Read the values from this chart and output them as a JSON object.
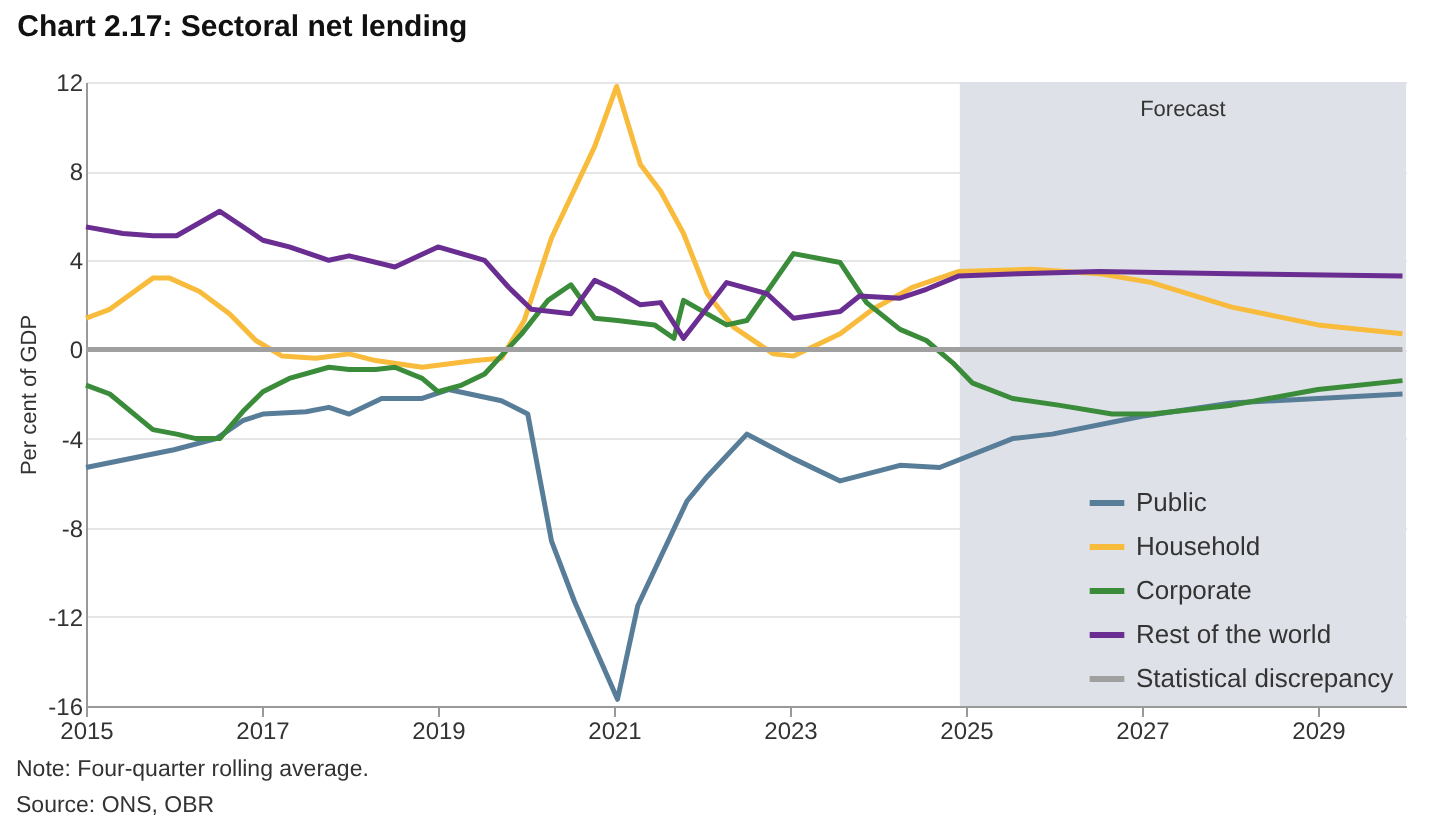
{
  "chart_data": {
    "type": "line",
    "title": "Chart 2.17: Sectoral net lending",
    "ylabel": "Per cent of GDP",
    "xlim": [
      2015,
      2030
    ],
    "xticks": [
      2015,
      2017,
      2019,
      2021,
      2023,
      2025,
      2027,
      2029
    ],
    "ylim": [
      -16,
      12
    ],
    "yticks": [
      -16,
      -12,
      -8,
      -4,
      0,
      4,
      8,
      12
    ],
    "grid": "y",
    "legend": "bottom right",
    "line_style": "solid",
    "marker": "none",
    "bands": [
      {
        "axis": "x",
        "from": 2024.93,
        "to": 2030,
        "label": "Forecast",
        "color": "#dfe1e8"
      }
    ],
    "annotations": [
      "Note: Four-quarter rolling average.",
      "Source: ONS, OBR"
    ],
    "series": [
      {
        "name": "Public",
        "color": "#587d98",
        "x": [
          2015,
          2016,
          2016.48,
          2016.78,
          2017.01,
          2017.5,
          2017.76,
          2017.99,
          2018.36,
          2018.82,
          2019.12,
          2019.72,
          2020.02,
          2020.29,
          2020.55,
          2021.04,
          2021.27,
          2021.83,
          2022.06,
          2022.51,
          2023.04,
          2023.57,
          2024.25,
          2024.7,
          2025.53,
          2025.98,
          2027,
          2028.02,
          2029,
          2029.96
        ],
        "values": [
          -5.3,
          -4.5,
          -4.0,
          -3.2,
          -2.9,
          -2.8,
          -2.6,
          -2.9,
          -2.2,
          -2.2,
          -1.8,
          -2.3,
          -2.9,
          -8.6,
          -11.3,
          -15.7,
          -11.5,
          -6.8,
          -5.7,
          -3.8,
          -4.9,
          -5.9,
          -5.2,
          -5.3,
          -4.0,
          -3.8,
          -3.0,
          -2.4,
          -2.2,
          -2.0
        ]
      },
      {
        "name": "Household",
        "color": "#f8bb3b",
        "x": [
          2015,
          2015.27,
          2015.76,
          2015.95,
          2016.29,
          2016.63,
          2016.93,
          2017.23,
          2017.61,
          2017.99,
          2018.29,
          2018.82,
          2019.42,
          2019.72,
          2019.98,
          2020.29,
          2020.78,
          2021.03,
          2021.3,
          2021.53,
          2021.79,
          2022.06,
          2022.36,
          2022.81,
          2023.04,
          2023.57,
          2023.94,
          2024.4,
          2024.92,
          2025.75,
          2026.51,
          2027.11,
          2028.02,
          2029,
          2029.96
        ],
        "values": [
          1.4,
          1.8,
          3.2,
          3.2,
          2.6,
          1.6,
          0.4,
          -0.3,
          -0.4,
          -0.2,
          -0.5,
          -0.8,
          -0.5,
          -0.4,
          1.3,
          5.0,
          9.1,
          11.8,
          8.3,
          7.1,
          5.2,
          2.5,
          1.0,
          -0.2,
          -0.3,
          0.7,
          1.8,
          2.8,
          3.5,
          3.6,
          3.4,
          3.0,
          1.9,
          1.1,
          0.7
        ]
      },
      {
        "name": "Corporate",
        "color": "#3a8c3a",
        "x": [
          2015,
          2015.27,
          2015.76,
          2016.03,
          2016.25,
          2016.52,
          2016.78,
          2017.01,
          2017.31,
          2017.76,
          2017.99,
          2018.29,
          2018.51,
          2018.82,
          2019.0,
          2019.27,
          2019.53,
          2019.95,
          2020.25,
          2020.51,
          2020.78,
          2021.04,
          2021.46,
          2021.68,
          2021.79,
          2022.28,
          2022.51,
          2023.04,
          2023.57,
          2023.87,
          2024.25,
          2024.55,
          2024.85,
          2025.07,
          2025.53,
          2026.05,
          2026.66,
          2027.11,
          2028.02,
          2029,
          2029.96
        ],
        "values": [
          -1.6,
          -2.0,
          -3.6,
          -3.8,
          -4.0,
          -4.0,
          -2.8,
          -1.9,
          -1.3,
          -0.8,
          -0.9,
          -0.9,
          -0.8,
          -1.3,
          -1.9,
          -1.6,
          -1.1,
          0.7,
          2.2,
          2.9,
          1.4,
          1.3,
          1.1,
          0.5,
          2.2,
          1.1,
          1.3,
          4.3,
          3.9,
          2.1,
          0.9,
          0.4,
          -0.6,
          -1.5,
          -2.2,
          -2.5,
          -2.9,
          -2.9,
          -2.5,
          -1.8,
          -1.4
        ]
      },
      {
        "name": "Rest of the world",
        "color": "#6a2d91",
        "x": [
          2015,
          2015.42,
          2015.76,
          2016.03,
          2016.52,
          2017.01,
          2017.31,
          2017.76,
          2017.99,
          2018.51,
          2019.0,
          2019.53,
          2019.8,
          2020.06,
          2020.51,
          2020.78,
          2021.0,
          2021.3,
          2021.53,
          2021.79,
          2022.28,
          2022.74,
          2023.04,
          2023.57,
          2023.79,
          2024.25,
          2024.55,
          2024.92,
          2025.6,
          2026.51,
          2028.02,
          2029.96
        ],
        "values": [
          5.5,
          5.2,
          5.1,
          5.1,
          6.2,
          4.9,
          4.6,
          4.0,
          4.2,
          3.7,
          4.6,
          4.0,
          2.8,
          1.8,
          1.6,
          3.1,
          2.7,
          2.0,
          2.1,
          0.5,
          3.0,
          2.5,
          1.4,
          1.7,
          2.4,
          2.3,
          2.7,
          3.3,
          3.4,
          3.5,
          3.4,
          3.3
        ]
      },
      {
        "name": "Statistical discrepancy",
        "color": "#a0a0a0",
        "x": [
          2015,
          2029.96
        ],
        "values": [
          0,
          0
        ]
      }
    ]
  }
}
